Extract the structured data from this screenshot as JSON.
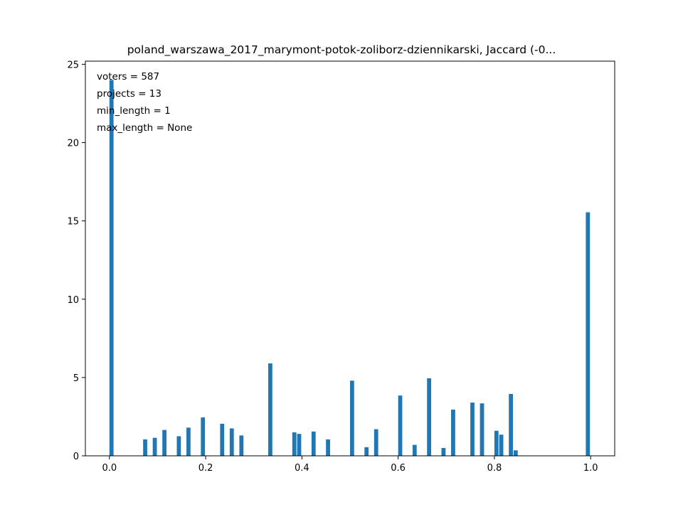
{
  "chart_data": {
    "type": "bar",
    "title": "poland_warszawa_2017_marymont-potok-zoliborz-dziennikarski, Jaccard (-0...",
    "xlabel": "",
    "ylabel": "",
    "xlim": [
      -0.05,
      1.05
    ],
    "ylim": [
      0,
      25.2
    ],
    "xticks": [
      0.0,
      0.2,
      0.4,
      0.6,
      0.8,
      1.0
    ],
    "xtick_labels": [
      "0.0",
      "0.2",
      "0.4",
      "0.6",
      "0.8",
      "1.0"
    ],
    "yticks": [
      0,
      5,
      10,
      15,
      20,
      25
    ],
    "ytick_labels": [
      "0",
      "5",
      "10",
      "15",
      "20",
      "25"
    ],
    "bar_width": 0.01,
    "bar_color": "#1f77b4",
    "grid": false,
    "annotations": [
      "voters = 587",
      "projects = 13",
      "min_length = 1",
      "max_length = None"
    ],
    "bars": [
      {
        "x": 0.005,
        "value": 24.0
      },
      {
        "x": 0.075,
        "value": 1.05
      },
      {
        "x": 0.095,
        "value": 1.15
      },
      {
        "x": 0.115,
        "value": 1.65
      },
      {
        "x": 0.145,
        "value": 1.25
      },
      {
        "x": 0.165,
        "value": 1.8
      },
      {
        "x": 0.195,
        "value": 2.45
      },
      {
        "x": 0.235,
        "value": 2.05
      },
      {
        "x": 0.255,
        "value": 1.75
      },
      {
        "x": 0.275,
        "value": 1.3
      },
      {
        "x": 0.335,
        "value": 5.9
      },
      {
        "x": 0.385,
        "value": 1.5
      },
      {
        "x": 0.395,
        "value": 1.4
      },
      {
        "x": 0.425,
        "value": 1.55
      },
      {
        "x": 0.455,
        "value": 1.05
      },
      {
        "x": 0.505,
        "value": 4.8
      },
      {
        "x": 0.535,
        "value": 0.55
      },
      {
        "x": 0.555,
        "value": 1.7
      },
      {
        "x": 0.605,
        "value": 3.85
      },
      {
        "x": 0.635,
        "value": 0.7
      },
      {
        "x": 0.665,
        "value": 4.95
      },
      {
        "x": 0.695,
        "value": 0.5
      },
      {
        "x": 0.715,
        "value": 2.95
      },
      {
        "x": 0.755,
        "value": 3.4
      },
      {
        "x": 0.775,
        "value": 3.35
      },
      {
        "x": 0.805,
        "value": 1.6
      },
      {
        "x": 0.815,
        "value": 1.35
      },
      {
        "x": 0.835,
        "value": 3.95
      },
      {
        "x": 0.845,
        "value": 0.35
      },
      {
        "x": 0.995,
        "value": 15.55
      }
    ]
  }
}
